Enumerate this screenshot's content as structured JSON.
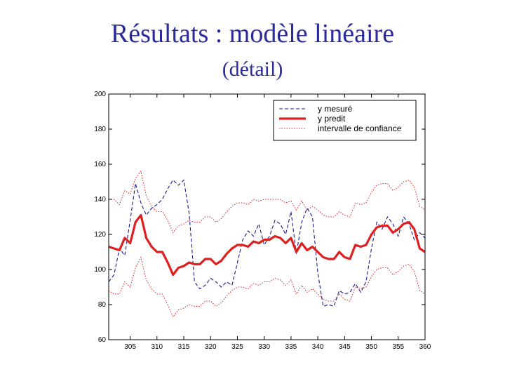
{
  "slide": {
    "title": "Résultats : modèle linéaire",
    "subtitle": "(détail)"
  },
  "chart_data": {
    "type": "line",
    "xlim": [
      301,
      360
    ],
    "ylim": [
      60,
      200
    ],
    "xticks": [
      305,
      310,
      315,
      320,
      325,
      330,
      335,
      340,
      345,
      350,
      355,
      360
    ],
    "yticks": [
      60,
      80,
      100,
      120,
      140,
      160,
      180,
      200
    ],
    "grid": false,
    "legend_position": "top-right",
    "series": [
      {
        "name": "y mesuré",
        "style": "dashed",
        "color": "#1a1a8c",
        "x": [
          301,
          302,
          303,
          304,
          305,
          306,
          307,
          308,
          309,
          310,
          311,
          312,
          313,
          314,
          315,
          316,
          317,
          318,
          319,
          320,
          321,
          322,
          323,
          324,
          325,
          326,
          327,
          328,
          329,
          330,
          331,
          332,
          333,
          334,
          335,
          336,
          337,
          338,
          339,
          340,
          341,
          342,
          343,
          344,
          345,
          346,
          347,
          348,
          349,
          350,
          351,
          352,
          353,
          354,
          355,
          356,
          357,
          358,
          359,
          360
        ],
        "values": [
          93,
          97,
          112,
          108,
          128,
          149,
          138,
          131,
          135,
          137,
          140,
          146,
          151,
          148,
          151,
          132,
          93,
          89,
          91,
          95,
          93,
          90,
          93,
          91,
          104,
          117,
          122,
          119,
          126,
          114,
          119,
          128,
          126,
          120,
          133,
          109,
          127,
          135,
          130,
          98,
          79,
          80,
          79,
          88,
          86,
          87,
          92,
          87,
          93,
          112,
          127,
          123,
          130,
          126,
          119,
          130,
          126,
          117,
          121,
          118
        ]
      },
      {
        "name": "y predit",
        "style": "solid",
        "color": "#e02020",
        "x": [
          301,
          302,
          303,
          304,
          305,
          306,
          307,
          308,
          309,
          310,
          311,
          312,
          313,
          314,
          315,
          316,
          317,
          318,
          319,
          320,
          321,
          322,
          323,
          324,
          325,
          326,
          327,
          328,
          329,
          330,
          331,
          332,
          333,
          334,
          335,
          336,
          337,
          338,
          339,
          340,
          341,
          342,
          343,
          344,
          345,
          346,
          347,
          348,
          349,
          350,
          351,
          352,
          353,
          354,
          355,
          356,
          357,
          358,
          359,
          360
        ],
        "values": [
          113,
          112,
          111,
          118,
          115,
          127,
          131,
          118,
          113,
          110,
          110,
          104,
          97,
          101,
          102,
          104,
          103,
          103,
          106,
          106,
          103,
          105,
          109,
          112,
          114,
          114,
          113,
          116,
          115,
          117,
          117,
          119,
          118,
          115,
          118,
          110,
          115,
          111,
          113,
          110,
          107,
          106,
          106,
          110,
          107,
          106,
          114,
          113,
          114,
          120,
          124,
          125,
          125,
          121,
          123,
          126,
          127,
          123,
          112,
          110
        ]
      },
      {
        "name": "intervalle de confiance",
        "style": "dotted",
        "color": "#e02020",
        "x": [
          301,
          302,
          303,
          304,
          305,
          306,
          307,
          308,
          309,
          310,
          311,
          312,
          313,
          314,
          315,
          316,
          317,
          318,
          319,
          320,
          321,
          322,
          323,
          324,
          325,
          326,
          327,
          328,
          329,
          330,
          331,
          332,
          333,
          334,
          335,
          336,
          337,
          338,
          339,
          340,
          341,
          342,
          343,
          344,
          345,
          346,
          347,
          348,
          349,
          350,
          351,
          352,
          353,
          354,
          355,
          356,
          357,
          358,
          359,
          360
        ],
        "values": [
          140,
          140,
          137,
          145,
          143,
          152,
          156,
          142,
          136,
          133,
          133,
          128,
          121,
          125,
          126,
          128,
          127,
          127,
          130,
          130,
          127,
          129,
          133,
          136,
          138,
          138,
          137,
          140,
          139,
          140,
          140,
          140,
          140,
          138,
          139,
          134,
          139,
          134,
          136,
          134,
          131,
          130,
          130,
          133,
          131,
          130,
          138,
          137,
          138,
          144,
          148,
          149,
          149,
          145,
          147,
          150,
          151,
          147,
          136,
          134
        ]
      },
      {
        "name": "",
        "style": "dotted",
        "color": "#e02020",
        "x": [
          301,
          302,
          303,
          304,
          305,
          306,
          307,
          308,
          309,
          310,
          311,
          312,
          313,
          314,
          315,
          316,
          317,
          318,
          319,
          320,
          321,
          322,
          323,
          324,
          325,
          326,
          327,
          328,
          329,
          330,
          331,
          332,
          333,
          334,
          335,
          336,
          337,
          338,
          339,
          340,
          341,
          342,
          343,
          344,
          345,
          346,
          347,
          348,
          349,
          350,
          351,
          352,
          353,
          354,
          355,
          356,
          357,
          358,
          359,
          360
        ],
        "values": [
          88,
          86,
          86,
          93,
          90,
          101,
          107,
          94,
          89,
          86,
          86,
          80,
          73,
          77,
          78,
          80,
          79,
          79,
          82,
          82,
          79,
          81,
          85,
          88,
          90,
          90,
          89,
          92,
          91,
          93,
          93,
          95,
          94,
          91,
          94,
          86,
          91,
          87,
          89,
          86,
          83,
          82,
          82,
          86,
          83,
          82,
          90,
          89,
          90,
          96,
          100,
          101,
          101,
          97,
          99,
          102,
          103,
          99,
          88,
          86
        ]
      }
    ],
    "legend": [
      "y mesuré",
      "y predit",
      "intervalle de confiance"
    ]
  }
}
